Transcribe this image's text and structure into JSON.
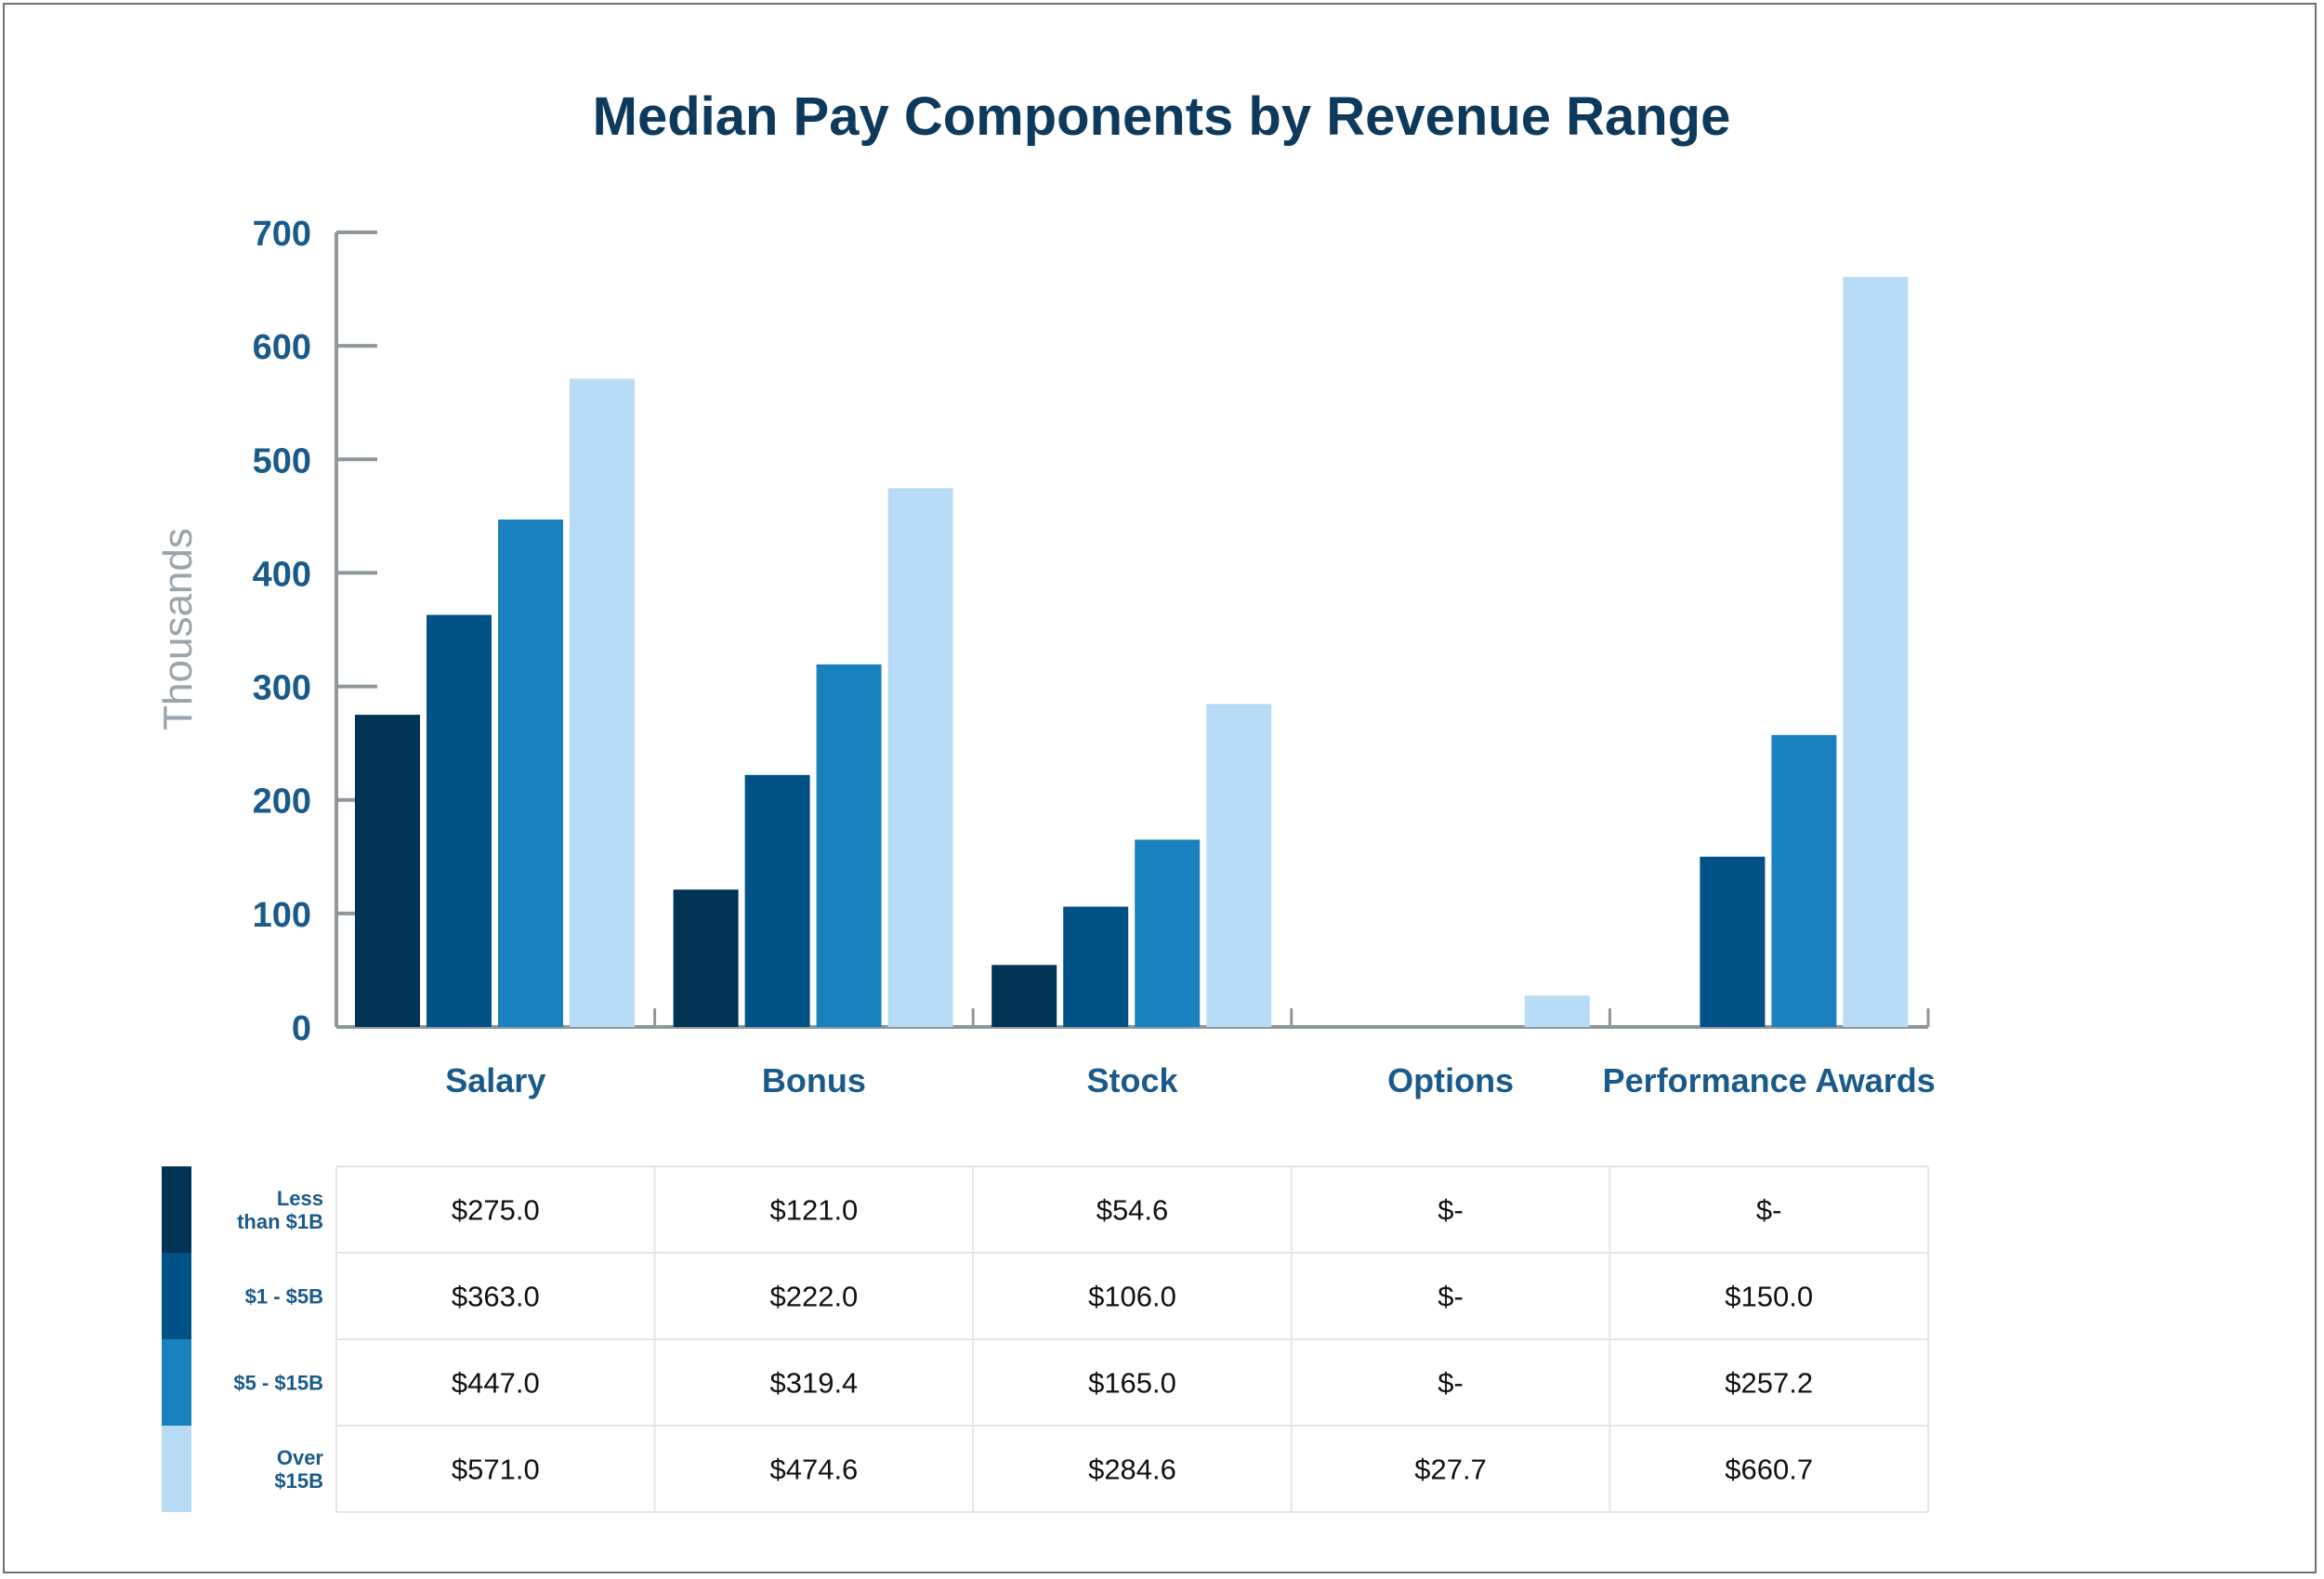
{
  "chart_data": {
    "type": "bar",
    "title": "Median Pay Components by Revenue Range",
    "ylabel": "Thousands",
    "ylim": [
      0,
      700
    ],
    "yticks": [
      "0",
      "100",
      "200",
      "300",
      "400",
      "500",
      "600",
      "700"
    ],
    "categories": [
      "Salary",
      "Bonus",
      "Stock",
      "Options",
      "Performance Awards"
    ],
    "series": [
      {
        "name": "Less than $1B",
        "label_lines": [
          "Less",
          "than $1B"
        ],
        "color": "#003354",
        "values": [
          275.0,
          121.0,
          54.6,
          0,
          0
        ],
        "labels": [
          "$275.0",
          "$121.0",
          "$54.6",
          "$-",
          "$-"
        ]
      },
      {
        "name": "$1 - $5B",
        "label_lines": [
          "$1 - $5B"
        ],
        "color": "#005286",
        "values": [
          363.0,
          222.0,
          106.0,
          0,
          150.0
        ],
        "labels": [
          "$363.0",
          "$222.0",
          "$106.0",
          "$-",
          "$150.0"
        ]
      },
      {
        "name": "$5 - $15B",
        "label_lines": [
          "$5 - $15B"
        ],
        "color": "#1982be",
        "values": [
          447.0,
          319.4,
          165.0,
          0,
          257.2
        ],
        "labels": [
          "$447.0",
          "$319.4",
          "$165.0",
          "$-",
          "$257.2"
        ]
      },
      {
        "name": "Over $15B",
        "label_lines": [
          "Over",
          "$15B"
        ],
        "color": "#b8dcf5",
        "values": [
          571.0,
          474.6,
          284.6,
          27.7,
          660.7
        ],
        "labels": [
          "$571.0",
          "$474.6",
          "$284.6",
          "$27.7",
          "$660.7"
        ]
      }
    ],
    "grid": false,
    "legend": "data table below chart"
  }
}
